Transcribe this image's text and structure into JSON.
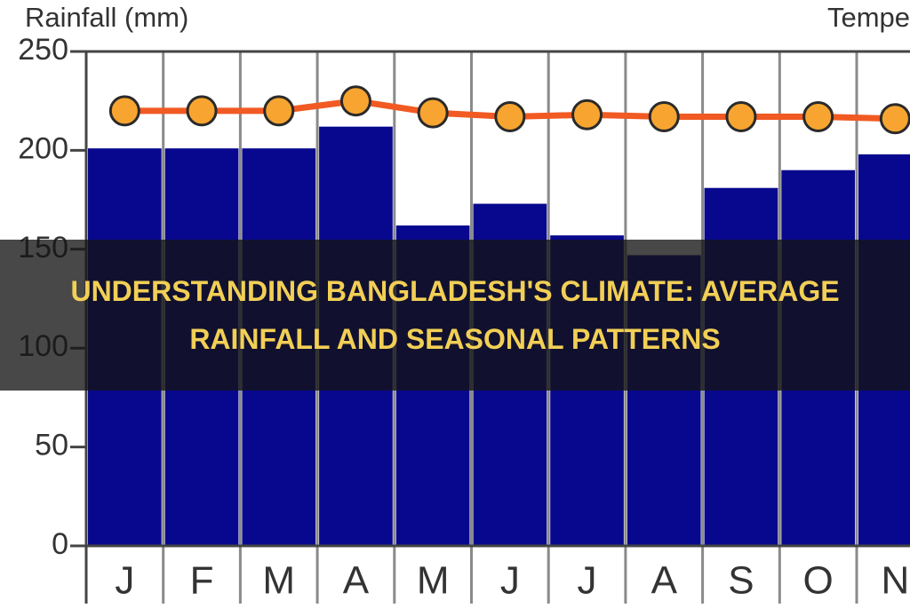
{
  "overlay_title": "UNDERSTANDING BANGLADESH'S CLIMATE: AVERAGE RAINFALL AND SEASONAL PATTERNS",
  "chart_data": {
    "type": "bar-line",
    "y_label": "Rainfall (mm)",
    "y2_label": "Tempe",
    "categories": [
      "J",
      "F",
      "M",
      "A",
      "M",
      "J",
      "J",
      "A",
      "S",
      "O",
      "N"
    ],
    "series": [
      {
        "type": "bar",
        "color": "#08088e",
        "values": [
          201,
          201,
          201,
          212,
          162,
          173,
          157,
          147,
          181,
          190,
          198
        ]
      },
      {
        "type": "line",
        "color": "#f15a22",
        "marker_color": "#f7a530",
        "values": [
          220,
          220,
          220,
          225,
          219,
          217,
          218,
          217,
          217,
          217,
          216
        ]
      }
    ],
    "ylim": [
      0,
      250
    ],
    "yticks": [
      0,
      50,
      100,
      150,
      200,
      250
    ]
  }
}
